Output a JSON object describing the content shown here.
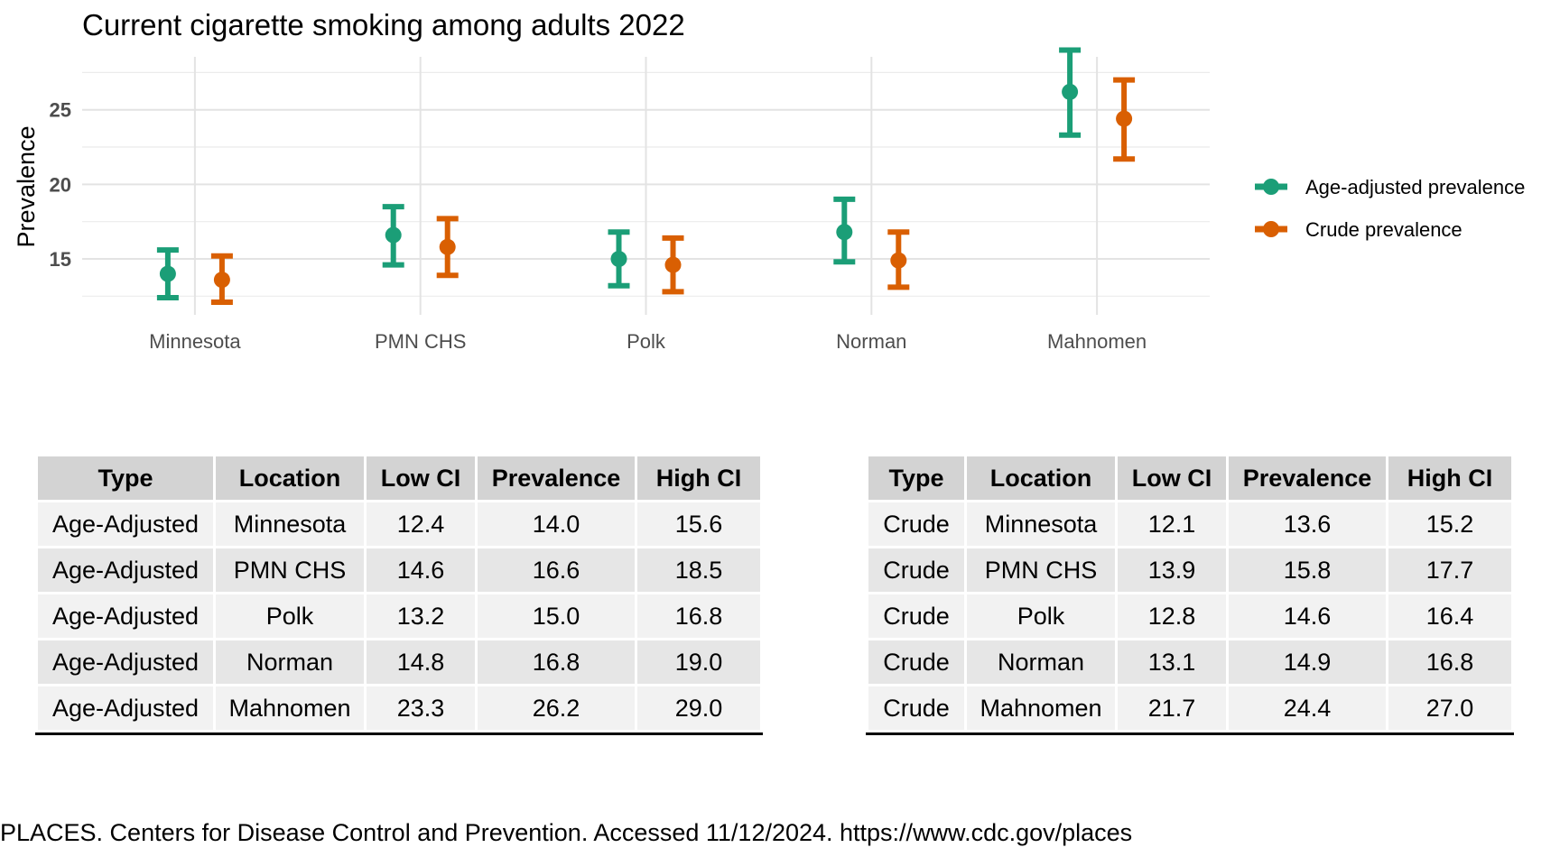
{
  "chart_data": {
    "type": "errorbar",
    "title": "Current cigarette smoking among adults 2022",
    "xlabel": "",
    "ylabel": "Prevalence",
    "categories": [
      "Minnesota",
      "PMN CHS",
      "Polk",
      "Norman",
      "Mahnomen"
    ],
    "y_ticks": [
      "15",
      "20",
      "25"
    ],
    "ylim": [
      12,
      30
    ],
    "grid": true,
    "legend_position": "right",
    "series": [
      {
        "name": "Age-adjusted prevalence",
        "color": "#1b9e77",
        "values": [
          14.0,
          16.6,
          15.0,
          16.8,
          26.2
        ],
        "low": [
          12.4,
          14.6,
          13.2,
          14.8,
          23.3
        ],
        "high": [
          15.6,
          18.5,
          16.8,
          19.0,
          29.0
        ]
      },
      {
        "name": "Crude prevalence",
        "color": "#d95f02",
        "values": [
          13.6,
          15.8,
          14.6,
          14.9,
          24.4
        ],
        "low": [
          12.1,
          13.9,
          12.8,
          13.1,
          21.7
        ],
        "high": [
          15.2,
          17.7,
          16.4,
          16.8,
          27.0
        ]
      }
    ]
  },
  "tables": {
    "headers": [
      "Type",
      "Location",
      "Low CI",
      "Prevalence",
      "High CI"
    ],
    "age_adjusted_rows": [
      [
        "Age-Adjusted",
        "Minnesota",
        "12.4",
        "14.0",
        "15.6"
      ],
      [
        "Age-Adjusted",
        "PMN CHS",
        "14.6",
        "16.6",
        "18.5"
      ],
      [
        "Age-Adjusted",
        "Polk",
        "13.2",
        "15.0",
        "16.8"
      ],
      [
        "Age-Adjusted",
        "Norman",
        "14.8",
        "16.8",
        "19.0"
      ],
      [
        "Age-Adjusted",
        "Mahnomen",
        "23.3",
        "26.2",
        "29.0"
      ]
    ],
    "crude_rows": [
      [
        "Crude",
        "Minnesota",
        "12.1",
        "13.6",
        "15.2"
      ],
      [
        "Crude",
        "PMN CHS",
        "13.9",
        "15.8",
        "17.7"
      ],
      [
        "Crude",
        "Polk",
        "12.8",
        "14.6",
        "16.4"
      ],
      [
        "Crude",
        "Norman",
        "13.1",
        "14.9",
        "16.8"
      ],
      [
        "Crude",
        "Mahnomen",
        "21.7",
        "24.4",
        "27.0"
      ]
    ]
  },
  "source_note": "PLACES. Centers for Disease Control and Prevention. Accessed 11/12/2024. https://www.cdc.gov/places"
}
